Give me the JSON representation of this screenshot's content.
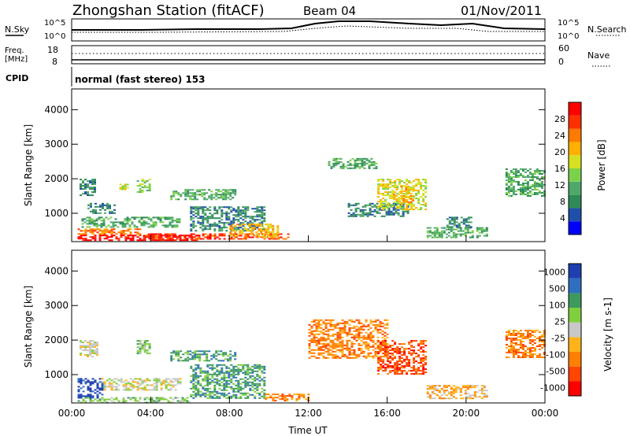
{
  "header": {
    "station": "Zhongshan Station (fitACF)",
    "beam": "Beam 04",
    "date": "01/Nov/2011"
  },
  "top_panels": {
    "noise_left_label": "N.Sky",
    "noise_right_label": "N.Search",
    "noise_ticks_left": [
      "10^5",
      "10^0"
    ],
    "noise_ticks_right": [
      "10^5",
      "10^0"
    ],
    "freq_label_1": "Freq.",
    "freq_label_2": "[MHz]",
    "freq_ticks": [
      "18",
      "8"
    ],
    "nave_ticks": [
      "60",
      "0"
    ],
    "nave_label": "Nave",
    "cpid_label": "CPID",
    "cpid_text": "normal (fast stereo) 153"
  },
  "colors": {
    "power": [
      "#0000ff",
      "#1f4fa8",
      "#2e8b57",
      "#4fa86a",
      "#7bd24a",
      "#d6e020",
      "#ffb000",
      "#ff7a00",
      "#ff3000",
      "#ff0000"
    ],
    "velocity": [
      "#ff0000",
      "#ff4500",
      "#ff7f00",
      "#ffb31a",
      "#c8c8c8",
      "#7fcf3f",
      "#3c9a5f",
      "#2f6fbf",
      "#1f3fb0"
    ]
  },
  "chart_data": [
    {
      "type": "heatmap",
      "name": "power-panel",
      "ylabel": "Slant Range [km]",
      "y_ticks": [
        "1000",
        "2000",
        "3000",
        "4000"
      ],
      "x_ticks": [
        "00:00",
        "04:00",
        "08:00",
        "12:00",
        "16:00",
        "20:00",
        "00:00"
      ],
      "colorbar_label": "Power [dB]",
      "colorbar_ticks": [
        "4",
        "8",
        "12",
        "16",
        "20",
        "24",
        "28"
      ],
      "ylim": [
        180,
        4600
      ],
      "xlim": [
        0,
        24
      ],
      "regions": [
        {
          "t0": 0.3,
          "t1": 6.5,
          "r0": 200,
          "r1": 380,
          "level": 9
        },
        {
          "t0": 0.3,
          "t1": 3.5,
          "r0": 380,
          "r1": 560,
          "level": 7
        },
        {
          "t0": 3.5,
          "t1": 11.0,
          "r0": 250,
          "r1": 420,
          "level": 8
        },
        {
          "t0": 0.5,
          "t1": 5.5,
          "r0": 600,
          "r1": 900,
          "level": 3
        },
        {
          "t0": 0.8,
          "t1": 2.2,
          "r0": 1000,
          "r1": 1300,
          "level": 2
        },
        {
          "t0": 0.4,
          "t1": 1.2,
          "r0": 1500,
          "r1": 2000,
          "level": 2
        },
        {
          "t0": 2.3,
          "t1": 2.8,
          "r0": 1700,
          "r1": 1900,
          "level": 5
        },
        {
          "t0": 3.3,
          "t1": 3.9,
          "r0": 1600,
          "r1": 2000,
          "level": 4
        },
        {
          "t0": 5.0,
          "t1": 8.3,
          "r0": 1400,
          "r1": 1700,
          "level": 3
        },
        {
          "t0": 6.0,
          "t1": 9.8,
          "r0": 500,
          "r1": 1200,
          "level": 2
        },
        {
          "t0": 8.0,
          "t1": 10.5,
          "r0": 300,
          "r1": 700,
          "level": 6
        },
        {
          "t0": 13.0,
          "t1": 15.5,
          "r0": 2300,
          "r1": 2600,
          "level": 3
        },
        {
          "t0": 14.0,
          "t1": 17.0,
          "r0": 900,
          "r1": 1300,
          "level": 2
        },
        {
          "t0": 15.5,
          "t1": 18.0,
          "r0": 1100,
          "r1": 2000,
          "level": 5
        },
        {
          "t0": 16.3,
          "t1": 17.3,
          "r0": 1300,
          "r1": 1800,
          "level": 6
        },
        {
          "t0": 18.0,
          "t1": 21.0,
          "r0": 300,
          "r1": 600,
          "level": 3
        },
        {
          "t0": 19.0,
          "t1": 20.2,
          "r0": 600,
          "r1": 900,
          "level": 2
        },
        {
          "t0": 22.0,
          "t1": 24.0,
          "r0": 1500,
          "r1": 2300,
          "level": 3
        }
      ]
    },
    {
      "type": "heatmap",
      "name": "velocity-panel",
      "ylabel": "Slant Range [km]",
      "xlabel": "Time UT",
      "y_ticks": [
        "1000",
        "2000",
        "3000",
        "4000"
      ],
      "x_ticks": [
        "00:00",
        "04:00",
        "08:00",
        "12:00",
        "16:00",
        "20:00",
        "00:00"
      ],
      "colorbar_label": "Velocity [m s-1]",
      "colorbar_ticks": [
        "1000",
        "500",
        "100",
        "25",
        "-25",
        "-100",
        "-500",
        "-1000"
      ],
      "ylim": [
        180,
        4600
      ],
      "xlim": [
        0,
        24
      ],
      "regions": [
        {
          "t0": 0.3,
          "t1": 6.0,
          "r0": 200,
          "r1": 350,
          "level": 5
        },
        {
          "t0": 0.3,
          "t1": 1.5,
          "r0": 350,
          "r1": 900,
          "level": 8
        },
        {
          "t0": 1.5,
          "t1": 5.5,
          "r0": 550,
          "r1": 900,
          "level": 4
        },
        {
          "t0": 0.4,
          "t1": 1.3,
          "r0": 1500,
          "r1": 2000,
          "level": 4
        },
        {
          "t0": 3.3,
          "t1": 3.9,
          "r0": 1600,
          "r1": 2000,
          "level": 5
        },
        {
          "t0": 5.0,
          "t1": 8.3,
          "r0": 1400,
          "r1": 1700,
          "level": 6
        },
        {
          "t0": 6.0,
          "t1": 9.8,
          "r0": 300,
          "r1": 1300,
          "level": 6
        },
        {
          "t0": 9.8,
          "t1": 12.0,
          "r0": 250,
          "r1": 450,
          "level": 2
        },
        {
          "t0": 12.0,
          "t1": 16.0,
          "r0": 1500,
          "r1": 2600,
          "level": 2
        },
        {
          "t0": 15.5,
          "t1": 18.0,
          "r0": 1000,
          "r1": 2000,
          "level": 1
        },
        {
          "t0": 18.0,
          "t1": 21.0,
          "r0": 300,
          "r1": 700,
          "level": 3
        },
        {
          "t0": 22.0,
          "t1": 24.0,
          "r0": 1500,
          "r1": 2300,
          "level": 2
        }
      ]
    }
  ]
}
